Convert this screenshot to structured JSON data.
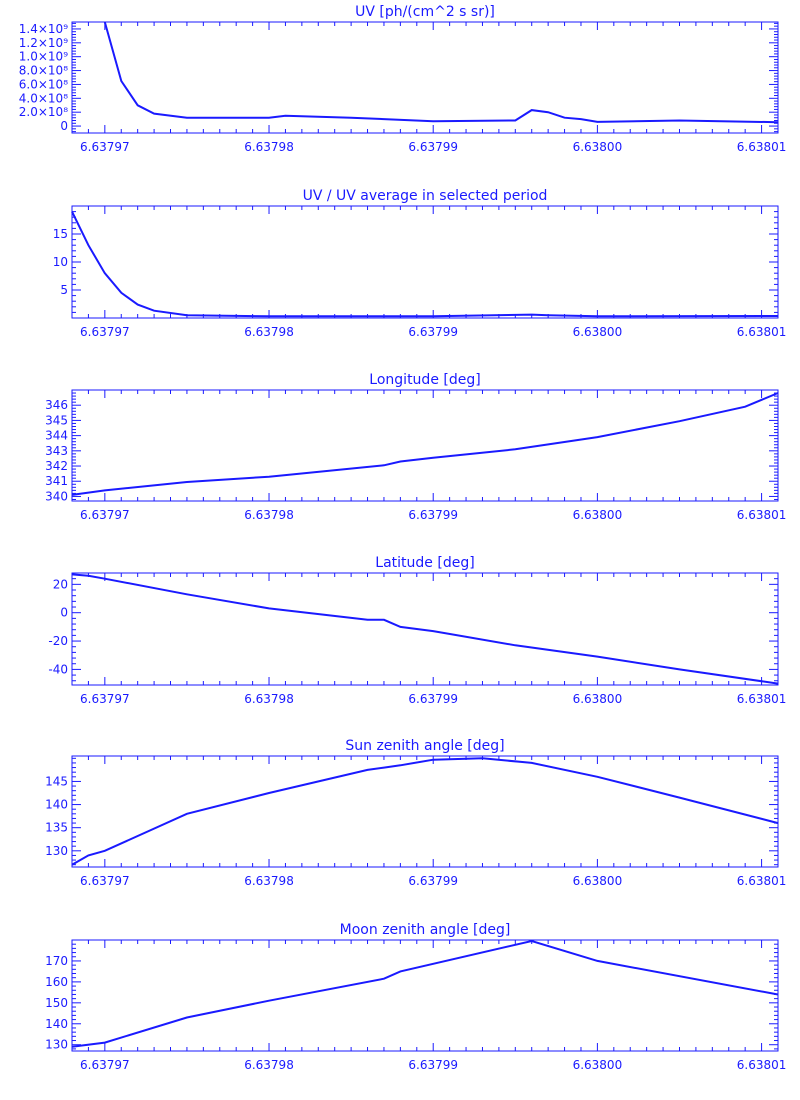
{
  "style": {
    "color": "#1a1aff",
    "background": "#ffffff"
  },
  "x_tick_labels": [
    "6.63797",
    "6.63798",
    "6.63799",
    "6.63800",
    "6.63801"
  ],
  "chart_data": [
    {
      "type": "line",
      "title": "UV [ph/(cm^2 s sr)]",
      "xlabel": "",
      "ylabel": "",
      "xlim": [
        6.637968,
        6.638011
      ],
      "ylim": [
        -100000000,
        1500000000
      ],
      "y_tick_labels": [
        "0",
        "2.0×10⁸",
        "4.0×10⁸",
        "6.0×10⁸",
        "8.0×10⁸",
        "1.0×10⁹",
        "1.2×10⁹",
        "1.4×10⁹"
      ],
      "y_tick_values": [
        0,
        200000000,
        400000000,
        600000000,
        800000000,
        1000000000,
        1200000000,
        1400000000
      ],
      "series": [
        {
          "x": [
            6.63797,
            6.637971,
            6.637972,
            6.637973,
            6.637975,
            6.63798,
            6.637981,
            6.637985,
            6.63799,
            6.637995,
            6.637996,
            6.637997,
            6.637998,
            6.637999,
            6.638,
            6.638005,
            6.638011
          ],
          "y": [
            1500000000,
            650000000,
            300000000,
            180000000,
            120000000,
            120000000,
            150000000,
            120000000,
            70000000,
            80000000,
            230000000,
            200000000,
            120000000,
            100000000,
            60000000,
            80000000,
            55000000
          ]
        }
      ]
    },
    {
      "type": "line",
      "title": "UV / UV average in selected period",
      "xlabel": "",
      "ylabel": "",
      "xlim": [
        6.637968,
        6.638011
      ],
      "ylim": [
        0,
        20
      ],
      "y_tick_labels": [
        "5",
        "10",
        "15"
      ],
      "y_tick_values": [
        5,
        10,
        15
      ],
      "series": [
        {
          "x": [
            6.637968,
            6.637969,
            6.63797,
            6.637971,
            6.637972,
            6.637973,
            6.637975,
            6.63798,
            6.63799,
            6.637996,
            6.637997,
            6.638,
            6.638011
          ],
          "y": [
            19,
            13,
            8,
            4.5,
            2.4,
            1.3,
            0.5,
            0.3,
            0.3,
            0.6,
            0.5,
            0.3,
            0.35
          ]
        }
      ]
    },
    {
      "type": "line",
      "title": "Longitude [deg]",
      "xlabel": "",
      "ylabel": "",
      "xlim": [
        6.637968,
        6.638011
      ],
      "ylim": [
        339.7,
        347
      ],
      "y_tick_labels": [
        "340",
        "341",
        "342",
        "343",
        "344",
        "345",
        "346"
      ],
      "y_tick_values": [
        340,
        341,
        342,
        343,
        344,
        345,
        346
      ],
      "series": [
        {
          "x": [
            6.637968,
            6.63797,
            6.637975,
            6.63798,
            6.637987,
            6.637988,
            6.63799,
            6.637995,
            6.638,
            6.638005,
            6.638009,
            6.638011
          ],
          "y": [
            340.1,
            340.4,
            340.95,
            341.3,
            342.05,
            342.3,
            342.55,
            343.1,
            343.9,
            344.95,
            345.9,
            346.8
          ]
        }
      ]
    },
    {
      "type": "line",
      "title": "Latitude [deg]",
      "xlabel": "",
      "ylabel": "",
      "xlim": [
        6.637968,
        6.638011
      ],
      "ylim": [
        -51,
        28
      ],
      "y_tick_labels": [
        "-40",
        "-20",
        "0",
        "20"
      ],
      "y_tick_values": [
        -40,
        -20,
        0,
        20
      ],
      "series": [
        {
          "x": [
            6.637968,
            6.637969,
            6.63797,
            6.637975,
            6.63798,
            6.637986,
            6.637987,
            6.637988,
            6.63799,
            6.637995,
            6.638,
            6.638005,
            6.638011
          ],
          "y": [
            27,
            26,
            24,
            13,
            3,
            -5,
            -5,
            -10,
            -13,
            -23,
            -31,
            -40,
            -50
          ]
        }
      ]
    },
    {
      "type": "line",
      "title": "Sun zenith angle [deg]",
      "xlabel": "",
      "ylabel": "",
      "xlim": [
        6.637968,
        6.638011
      ],
      "ylim": [
        126.5,
        150.5
      ],
      "y_tick_labels": [
        "130",
        "135",
        "140",
        "145"
      ],
      "y_tick_values": [
        130,
        135,
        140,
        145
      ],
      "series": [
        {
          "x": [
            6.637968,
            6.637969,
            6.63797,
            6.637975,
            6.63798,
            6.637986,
            6.637987,
            6.637988,
            6.63799,
            6.637993,
            6.637996,
            6.638,
            6.638005,
            6.638011
          ],
          "y": [
            127,
            129,
            130,
            138,
            142.5,
            147.5,
            148,
            148.5,
            149.7,
            150,
            149,
            146,
            141.5,
            136
          ]
        }
      ]
    },
    {
      "type": "line",
      "title": "Moon zenith angle [deg]",
      "xlabel": "",
      "ylabel": "",
      "xlim": [
        6.637968,
        6.638011
      ],
      "ylim": [
        127,
        180
      ],
      "y_tick_labels": [
        "130",
        "140",
        "150",
        "160",
        "170"
      ],
      "y_tick_values": [
        130,
        140,
        150,
        160,
        170
      ],
      "series": [
        {
          "x": [
            6.637968,
            6.63797,
            6.637975,
            6.63798,
            6.637987,
            6.637988,
            6.637996,
            6.638,
            6.638011
          ],
          "y": [
            129,
            131,
            143,
            151,
            161.5,
            165,
            179.5,
            170,
            154
          ]
        }
      ]
    }
  ]
}
